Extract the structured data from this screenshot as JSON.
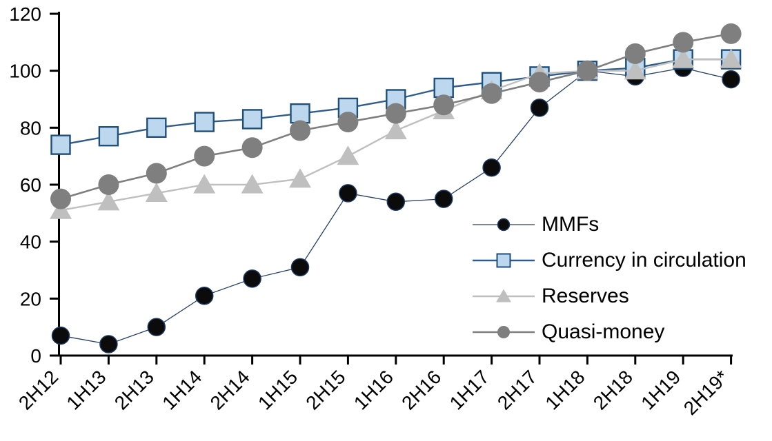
{
  "chart_data": {
    "type": "line",
    "title": "",
    "categories": [
      "2H12",
      "1H13",
      "2H13",
      "1H14",
      "2H14",
      "1H15",
      "2H15",
      "1H16",
      "2H16",
      "1H17",
      "2H17",
      "1H18",
      "2H18",
      "1H19",
      "2H19*"
    ],
    "series": [
      {
        "name": "MMFs",
        "marker": "circle",
        "marker_fill": "#0b0b0b",
        "marker_stroke": "#1f3864",
        "line_color": "#263f6a",
        "line_width": 1.3,
        "marker_size": 25,
        "values": [
          7,
          4,
          10,
          21,
          27,
          31,
          57,
          54,
          55,
          66,
          87,
          100,
          98,
          101,
          97
        ]
      },
      {
        "name": "Currency in circulation",
        "marker": "square",
        "marker_fill": "#bdd7ee",
        "marker_stroke": "#1f4e79",
        "line_color": "#2e5c8a",
        "line_width": 2.4,
        "marker_size": 27,
        "values": [
          74,
          77,
          80,
          82,
          83,
          85,
          87,
          90,
          94,
          96,
          98,
          100,
          101,
          104,
          104
        ]
      },
      {
        "name": "Reserves",
        "marker": "triangle",
        "marker_fill": "#bfbfbf",
        "marker_stroke": "none",
        "line_color": "#bfbfbf",
        "line_width": 2.4,
        "marker_size": 32,
        "values": [
          51,
          54,
          57,
          60,
          60,
          62,
          70,
          79,
          86,
          93,
          99,
          100,
          100,
          104,
          104
        ]
      },
      {
        "name": "Quasi-money",
        "marker": "circle",
        "marker_fill": "#7f7f7f",
        "marker_stroke": "none",
        "line_color": "#7f7f7f",
        "line_width": 2.6,
        "marker_size": 30,
        "values": [
          55,
          60,
          64,
          70,
          73,
          79,
          82,
          85,
          88,
          92,
          96,
          100,
          106,
          110,
          113
        ]
      }
    ],
    "y_axis": {
      "min": 0,
      "max": 120,
      "tick_step": 20,
      "tick_labels": [
        "0",
        "20",
        "40",
        "60",
        "80",
        "100",
        "120"
      ]
    },
    "x_axis": {
      "tick_labels": [
        "2H12",
        "1H13",
        "2H13",
        "1H14",
        "2H14",
        "1H15",
        "2H15",
        "1H16",
        "2H16",
        "1H17",
        "2H17",
        "1H18",
        "2H18",
        "1H19",
        "2H19*"
      ],
      "label_rotation": -45
    },
    "legend": {
      "position": "inside-right"
    },
    "grid": false,
    "axis_color": "#000000",
    "background": "#ffffff"
  }
}
